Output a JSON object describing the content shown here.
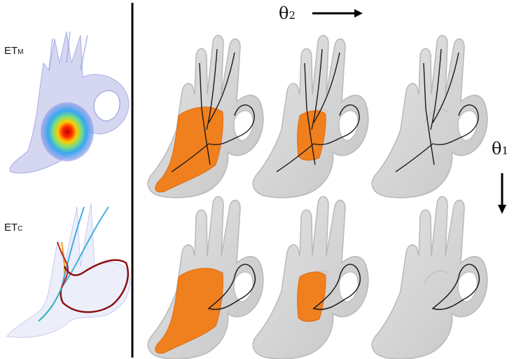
{
  "labels": {
    "et_m": {
      "base": "ET",
      "sub": "M"
    },
    "et_c": {
      "base": "ET",
      "sub": "C"
    },
    "theta2": {
      "base": "θ",
      "sub": "2"
    },
    "theta1": {
      "base": "θ",
      "sub": "1"
    }
  },
  "colors": {
    "hand": "#d3d3d3",
    "hand_outline": "#b5b5b5",
    "patch": "#f0801e",
    "skeleton": "#1a1a1a",
    "divider": "#000000"
  },
  "panels": [
    {
      "row": 1,
      "col": 1,
      "patch": "large",
      "skeleton": "full"
    },
    {
      "row": 1,
      "col": 2,
      "patch": "medium",
      "skeleton": "full"
    },
    {
      "row": 1,
      "col": 3,
      "patch": "none",
      "skeleton": "full"
    },
    {
      "row": 2,
      "col": 1,
      "patch": "large",
      "skeleton": "loop"
    },
    {
      "row": 2,
      "col": 2,
      "patch": "medium",
      "skeleton": "loop"
    },
    {
      "row": 2,
      "col": 3,
      "patch": "none",
      "skeleton": "loop"
    }
  ]
}
